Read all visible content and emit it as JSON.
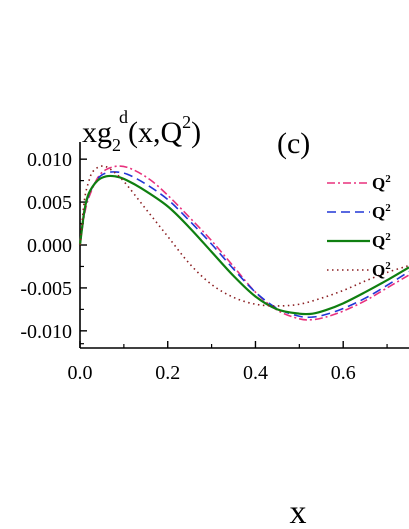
{
  "chart_data": {
    "type": "line",
    "title": "xg2d(x,Q2)",
    "title_parts": {
      "base": "xg",
      "sub": "2",
      "sup": "d",
      "args_open": "(x,Q",
      "args_sup": "2",
      "args_close": ")"
    },
    "panel_label": "(c)",
    "xlabel": "x",
    "ylabel": "",
    "xlim": [
      0.0,
      0.75
    ],
    "ylim": [
      -0.012,
      0.012
    ],
    "x_ticks": [
      "0.0",
      "0.2",
      "0.4",
      "0.6"
    ],
    "x_tick_values": [
      0.0,
      0.2,
      0.4,
      0.6
    ],
    "y_ticks": [
      "0.010",
      "0.005",
      "0.000",
      "-0.005",
      "-0.010"
    ],
    "y_tick_values": [
      0.01,
      0.005,
      0.0,
      -0.005,
      -0.01
    ],
    "grid": false,
    "legend_position": "top-right",
    "series": [
      {
        "legend_label": "Q",
        "legend_sup": "2",
        "color": "#e8317d",
        "dash": "dash-dot",
        "points": [
          [
            0.0,
            0.0
          ],
          [
            0.01,
            0.0035
          ],
          [
            0.02,
            0.0055
          ],
          [
            0.04,
            0.0078
          ],
          [
            0.06,
            0.0088
          ],
          [
            0.09,
            0.0092
          ],
          [
            0.12,
            0.0088
          ],
          [
            0.16,
            0.0076
          ],
          [
            0.2,
            0.0058
          ],
          [
            0.25,
            0.0032
          ],
          [
            0.3,
            0.0005
          ],
          [
            0.35,
            -0.0025
          ],
          [
            0.4,
            -0.0055
          ],
          [
            0.45,
            -0.0076
          ],
          [
            0.5,
            -0.0086
          ],
          [
            0.53,
            -0.0087
          ],
          [
            0.56,
            -0.0084
          ],
          [
            0.6,
            -0.0077
          ],
          [
            0.65,
            -0.0065
          ],
          [
            0.7,
            -0.005
          ],
          [
            0.75,
            -0.0035
          ]
        ]
      },
      {
        "legend_label": "Q",
        "legend_sup": "2",
        "color": "#2136d6",
        "dash": "dashed",
        "points": [
          [
            0.0,
            0.0
          ],
          [
            0.01,
            0.0038
          ],
          [
            0.02,
            0.0058
          ],
          [
            0.04,
            0.0077
          ],
          [
            0.06,
            0.0084
          ],
          [
            0.085,
            0.0085
          ],
          [
            0.11,
            0.0082
          ],
          [
            0.15,
            0.0071
          ],
          [
            0.2,
            0.0053
          ],
          [
            0.25,
            0.0028
          ],
          [
            0.3,
            0.0001
          ],
          [
            0.35,
            -0.0028
          ],
          [
            0.4,
            -0.0055
          ],
          [
            0.45,
            -0.0074
          ],
          [
            0.5,
            -0.0083
          ],
          [
            0.53,
            -0.0084
          ],
          [
            0.56,
            -0.0081
          ],
          [
            0.6,
            -0.0074
          ],
          [
            0.65,
            -0.0062
          ],
          [
            0.7,
            -0.0047
          ],
          [
            0.75,
            -0.0031
          ]
        ]
      },
      {
        "legend_label": "Q",
        "legend_sup": "2",
        "color": "#0f7f10",
        "dash": "solid",
        "points": [
          [
            0.0,
            0.0
          ],
          [
            0.01,
            0.004
          ],
          [
            0.02,
            0.006
          ],
          [
            0.04,
            0.0075
          ],
          [
            0.06,
            0.008
          ],
          [
            0.08,
            0.008
          ],
          [
            0.1,
            0.0077
          ],
          [
            0.14,
            0.0066
          ],
          [
            0.2,
            0.0045
          ],
          [
            0.25,
            0.002
          ],
          [
            0.3,
            -0.0008
          ],
          [
            0.35,
            -0.0036
          ],
          [
            0.4,
            -0.006
          ],
          [
            0.45,
            -0.0075
          ],
          [
            0.5,
            -0.008
          ],
          [
            0.53,
            -0.008
          ],
          [
            0.56,
            -0.0076
          ],
          [
            0.6,
            -0.0068
          ],
          [
            0.65,
            -0.0055
          ],
          [
            0.7,
            -0.0041
          ],
          [
            0.75,
            -0.0026
          ]
        ]
      },
      {
        "legend_label": "Q",
        "legend_sup": "2",
        "color": "#8b1f22",
        "dash": "dotted",
        "points": [
          [
            0.0,
            0.0
          ],
          [
            0.01,
            0.0052
          ],
          [
            0.02,
            0.0074
          ],
          [
            0.03,
            0.0086
          ],
          [
            0.05,
            0.0092
          ],
          [
            0.07,
            0.0088
          ],
          [
            0.1,
            0.0074
          ],
          [
            0.15,
            0.0042
          ],
          [
            0.2,
            0.001
          ],
          [
            0.25,
            -0.0022
          ],
          [
            0.3,
            -0.0046
          ],
          [
            0.35,
            -0.0061
          ],
          [
            0.4,
            -0.0069
          ],
          [
            0.45,
            -0.0071
          ],
          [
            0.5,
            -0.0069
          ],
          [
            0.55,
            -0.0062
          ],
          [
            0.6,
            -0.0053
          ],
          [
            0.65,
            -0.0042
          ],
          [
            0.7,
            -0.0032
          ],
          [
            0.75,
            -0.0024
          ]
        ]
      }
    ]
  }
}
